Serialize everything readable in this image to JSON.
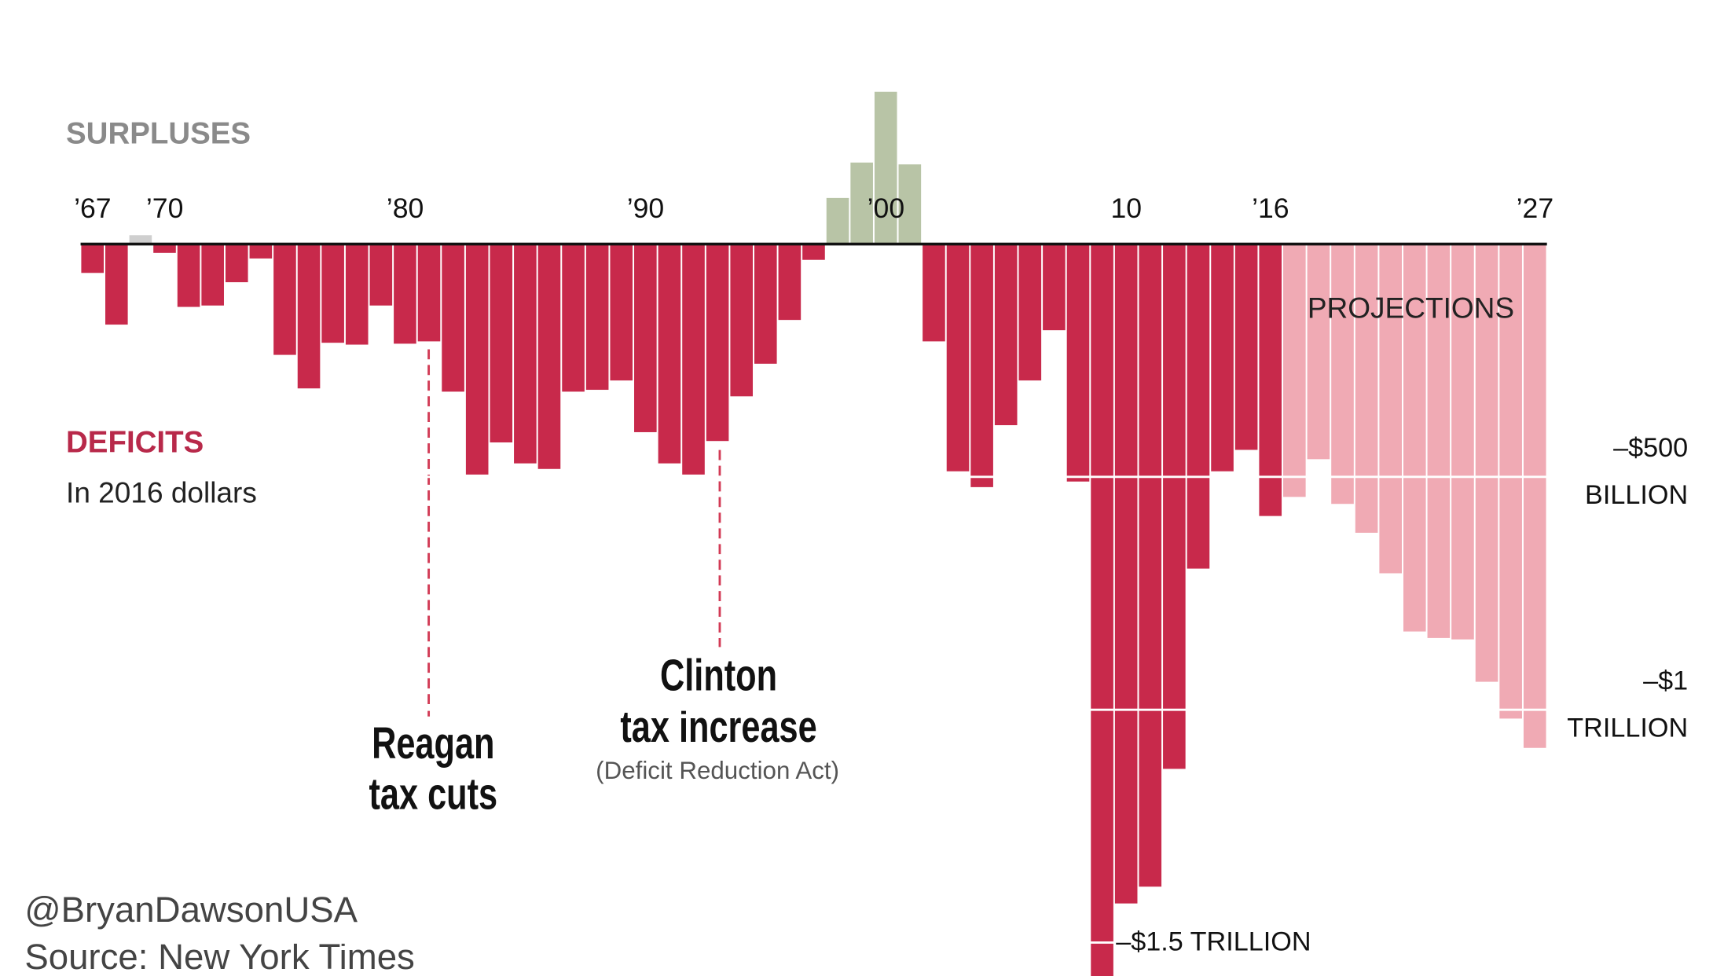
{
  "chart_data": {
    "type": "bar",
    "categories": [
      "’67",
      null,
      null,
      "’70",
      null,
      null,
      null,
      null,
      null,
      null,
      null,
      null,
      null,
      "’80",
      null,
      null,
      null,
      null,
      null,
      null,
      null,
      null,
      null,
      "’90",
      null,
      null,
      null,
      null,
      null,
      null,
      null,
      null,
      null,
      "’00",
      null,
      null,
      null,
      null,
      null,
      null,
      null,
      null,
      null,
      "10",
      null,
      null,
      null,
      null,
      null,
      "’16",
      null,
      null,
      null,
      null,
      null,
      null,
      null,
      null,
      null,
      null,
      "’27"
    ],
    "values": [
      -62,
      -173,
      19,
      -19,
      -135,
      -132,
      -82,
      -31,
      -238,
      -310,
      -212,
      -216,
      -132,
      -214,
      -209,
      -317,
      -495,
      -426,
      -471,
      -483,
      -317,
      -313,
      -293,
      -404,
      -471,
      -495,
      -423,
      -327,
      -257,
      -163,
      -34,
      99,
      175,
      327,
      171,
      -209,
      -488,
      -522,
      -389,
      -293,
      -185,
      -510,
      -1572,
      -1416,
      -1380,
      -1127,
      -697,
      -488,
      -442,
      -584,
      -543,
      -462,
      -558,
      -620,
      -707,
      -832,
      -846,
      -849,
      -940,
      -1019,
      -1082
    ],
    "colors": [
      "#c8294b",
      "#c8294b",
      "#cfcfcf",
      "#c8294b",
      "#c8294b",
      "#c8294b",
      "#c8294b",
      "#c8294b",
      "#c8294b",
      "#c8294b",
      "#c8294b",
      "#c8294b",
      "#c8294b",
      "#c8294b",
      "#c8294b",
      "#c8294b",
      "#c8294b",
      "#c8294b",
      "#c8294b",
      "#c8294b",
      "#c8294b",
      "#c8294b",
      "#c8294b",
      "#c8294b",
      "#c8294b",
      "#c8294b",
      "#c8294b",
      "#c8294b",
      "#c8294b",
      "#c8294b",
      "#c8294b",
      "#b8c4a6",
      "#b8c4a6",
      "#b8c4a6",
      "#b8c4a6",
      "#c8294b",
      "#c8294b",
      "#c8294b",
      "#c8294b",
      "#c8294b",
      "#c8294b",
      "#c8294b",
      "#c8294b",
      "#c8294b",
      "#c8294b",
      "#c8294b",
      "#c8294b",
      "#c8294b",
      "#c8294b",
      "#c8294b",
      "#f0aab4",
      "#f0aab4",
      "#f0aab4",
      "#f0aab4",
      "#f0aab4",
      "#f0aab4",
      "#f0aab4",
      "#f0aab4",
      "#f0aab4",
      "#f0aab4",
      "#f0aab4"
    ],
    "ylim": [
      -1575,
      350
    ],
    "yticks": [
      {
        "value": -500,
        "label": "–$500\nBILLION"
      },
      {
        "value": -1000,
        "label": "–$1\nTRILLION"
      },
      {
        "value": -1500,
        "label": "–$1.5 TRILLION"
      }
    ],
    "grid": true,
    "annotations": {
      "surpluses": "SURPLUSES",
      "deficits": "DEFICITS",
      "units": "In 2016 dollars",
      "projections": "PROJECTIONS",
      "reagan": [
        "Reagan",
        "tax cuts"
      ],
      "clinton": [
        "Clinton",
        "tax increase"
      ],
      "clinton_note": "(Deficit Reduction Act)",
      "handle": "@BryanDawsonUSA",
      "source": "Source: New York Times"
    }
  }
}
